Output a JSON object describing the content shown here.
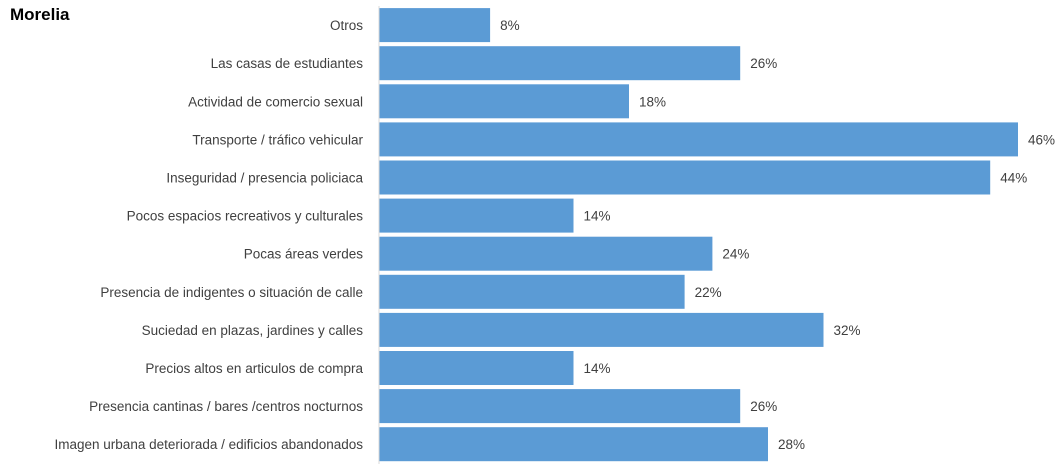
{
  "colors": {
    "bar": "#5b9bd5",
    "axis": "#d9d9d9",
    "text": "#404040"
  },
  "chart_data": {
    "type": "bar",
    "orientation": "horizontal",
    "title": "Morelia",
    "xlabel": "",
    "ylabel": "",
    "xlim": [
      0,
      46
    ],
    "grid": false,
    "legend": "none",
    "value_suffix": "%",
    "categories": [
      "Otros",
      "Las casas de estudiantes",
      "Actividad de comercio sexual",
      "Transporte / tráfico vehicular",
      "Inseguridad / presencia policiaca",
      "Pocos espacios recreativos y culturales",
      "Pocas áreas verdes",
      "Presencia de indigentes o situación de calle",
      "Suciedad en plazas, jardines y calles",
      "Precios altos en articulos de compra",
      "Presencia cantinas / bares /centros nocturnos",
      "Imagen urbana deteriorada / edificios abandonados"
    ],
    "values": [
      8,
      26,
      18,
      46,
      44,
      14,
      24,
      22,
      32,
      14,
      26,
      28
    ],
    "data_labels": [
      "8%",
      "26%",
      "18%",
      "46%",
      "44%",
      "14%",
      "24%",
      "22%",
      "32%",
      "14%",
      "26%",
      "28%"
    ]
  }
}
